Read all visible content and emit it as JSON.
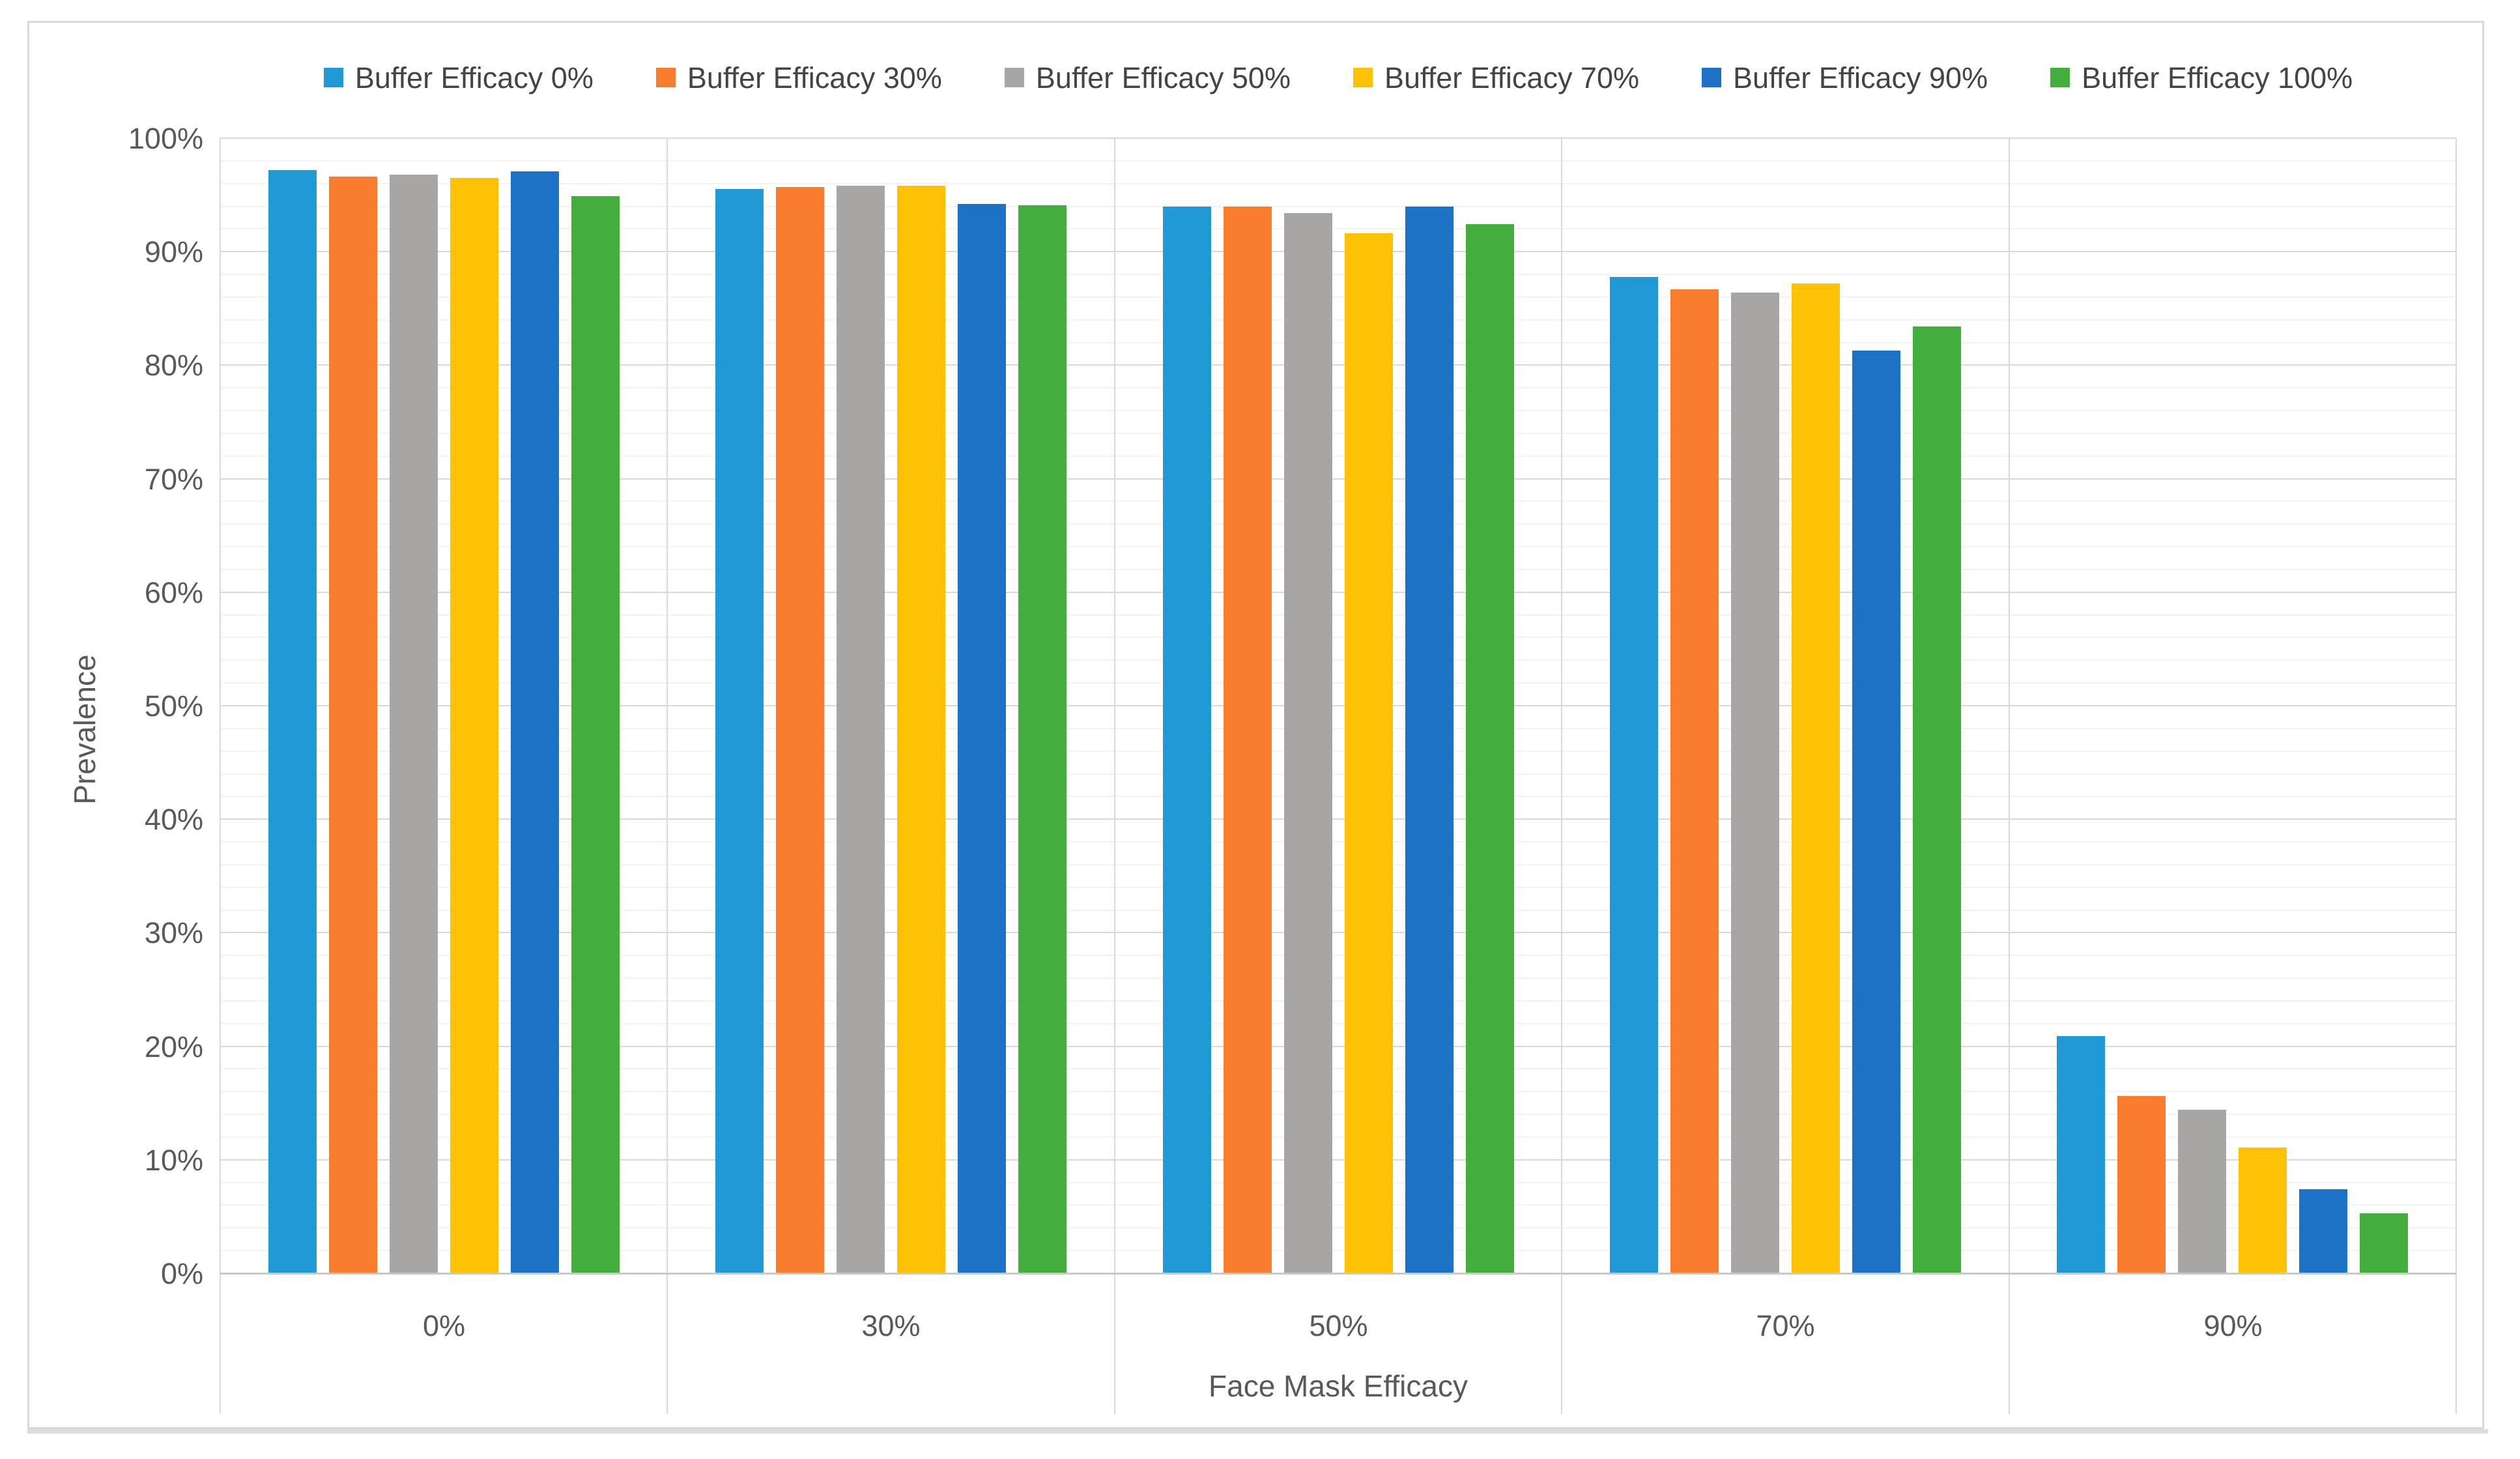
{
  "chart_data": {
    "type": "bar",
    "title": "",
    "xlabel": "Face Mask Efficacy",
    "ylabel": "Prevalence",
    "categories": [
      "0%",
      "30%",
      "50%",
      "70%",
      "90%"
    ],
    "series": [
      {
        "name": "Buffer Efficacy 0%",
        "color": "#2199d6",
        "values": [
          97.2,
          95.5,
          94.0,
          87.8,
          20.9
        ]
      },
      {
        "name": "Buffer Efficacy 30%",
        "color": "#fa7d2d",
        "values": [
          96.6,
          95.7,
          94.0,
          86.7,
          15.6
        ]
      },
      {
        "name": "Buffer Efficacy 50%",
        "color": "#a7a6a5",
        "values": [
          96.8,
          95.8,
          93.4,
          86.4,
          14.4
        ]
      },
      {
        "name": "Buffer Efficacy 70%",
        "color": "#ffc103",
        "values": [
          96.5,
          95.8,
          91.6,
          87.2,
          11.1
        ]
      },
      {
        "name": "Buffer Efficacy 90%",
        "color": "#1c72c6",
        "values": [
          97.1,
          94.2,
          94.0,
          81.3,
          7.4
        ]
      },
      {
        "name": "Buffer Efficacy 100%",
        "color": "#44ae3d",
        "values": [
          94.9,
          94.1,
          92.4,
          83.4,
          5.3
        ]
      }
    ],
    "y_ticks": [
      "0%",
      "10%",
      "20%",
      "30%",
      "40%",
      "50%",
      "60%",
      "70%",
      "80%",
      "90%",
      "100%"
    ],
    "ylim": [
      0,
      100
    ],
    "y_major_step": 10,
    "y_minor_step": 2,
    "grid": true,
    "legend_position": "top"
  },
  "colors": {
    "grid_major": "#d9d9d9",
    "grid_minor": "#f3f3f3",
    "axis_line": "#c9c9c9",
    "frame_border": "#d9d9d9",
    "tick_text": "#595959",
    "legend_text": "#444444",
    "background": "#ffffff"
  }
}
